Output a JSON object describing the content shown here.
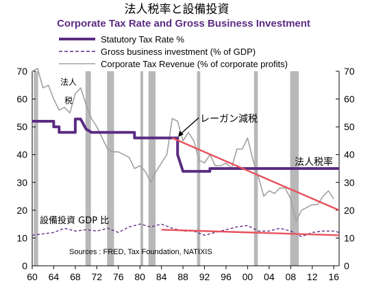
{
  "chart_data": {
    "type": "line",
    "title_jp": "法人税率と設備投資",
    "title": "Corporate Tax Rate and Gross Business Investment",
    "xlim": [
      1960,
      2017
    ],
    "ylim": [
      0,
      70
    ],
    "y_ticks": [
      0,
      10,
      20,
      30,
      40,
      50,
      60,
      70
    ],
    "x_tick_labels": [
      {
        "year": 1960,
        "label": "60"
      },
      {
        "year": 1964,
        "label": "64"
      },
      {
        "year": 1968,
        "label": "68"
      },
      {
        "year": 1972,
        "label": "72"
      },
      {
        "year": 1976,
        "label": "76"
      },
      {
        "year": 1980,
        "label": "80"
      },
      {
        "year": 1984,
        "label": "84"
      },
      {
        "year": 1988,
        "label": "88"
      },
      {
        "year": 1992,
        "label": "92"
      },
      {
        "year": 1996,
        "label": "96"
      },
      {
        "year": 2000,
        "label": "00"
      },
      {
        "year": 2004,
        "label": "04"
      },
      {
        "year": 2008,
        "label": "08"
      },
      {
        "year": 2012,
        "label": "12"
      },
      {
        "year": 2016,
        "label": "16"
      }
    ],
    "recessions": [
      [
        1960.3,
        1961.1
      ],
      [
        1969.9,
        1970.9
      ],
      [
        1973.9,
        1975.2
      ],
      [
        1980.1,
        1980.6
      ],
      [
        1981.6,
        1982.9
      ],
      [
        1990.6,
        1991.2
      ],
      [
        2001.2,
        2001.9
      ],
      [
        2007.9,
        2009.5
      ]
    ],
    "series": [
      {
        "name": "Statutory Tax Rate %",
        "color": "#5b2c83",
        "style": "thick",
        "points": [
          [
            1960,
            52
          ],
          [
            1964,
            52
          ],
          [
            1964,
            50
          ],
          [
            1965,
            50
          ],
          [
            1965,
            48
          ],
          [
            1968,
            48
          ],
          [
            1968,
            52.8
          ],
          [
            1969,
            52.8
          ],
          [
            1970,
            49.2
          ],
          [
            1971,
            48
          ],
          [
            1979,
            48
          ],
          [
            1979,
            46
          ],
          [
            1987,
            46
          ],
          [
            1987,
            40
          ],
          [
            1988,
            34
          ],
          [
            1993,
            34
          ],
          [
            1993,
            35
          ],
          [
            2017,
            35
          ]
        ]
      },
      {
        "name": "Gross business investment (% of GDP)",
        "color": "#5b2c83",
        "style": "dashed",
        "points": [
          [
            1960,
            11
          ],
          [
            1962,
            11.5
          ],
          [
            1964,
            12
          ],
          [
            1966,
            13.5
          ],
          [
            1968,
            12.5
          ],
          [
            1970,
            13
          ],
          [
            1972,
            12.5
          ],
          [
            1974,
            13.5
          ],
          [
            1976,
            12
          ],
          [
            1978,
            14
          ],
          [
            1980,
            15
          ],
          [
            1982,
            14
          ],
          [
            1984,
            15
          ],
          [
            1986,
            13.5
          ],
          [
            1988,
            12.5
          ],
          [
            1990,
            12.5
          ],
          [
            1992,
            11
          ],
          [
            1994,
            12
          ],
          [
            1996,
            13
          ],
          [
            1998,
            14
          ],
          [
            2000,
            14.5
          ],
          [
            2002,
            12.5
          ],
          [
            2004,
            12.5
          ],
          [
            2006,
            13.5
          ],
          [
            2008,
            12.5
          ],
          [
            2010,
            10.5
          ],
          [
            2012,
            12
          ],
          [
            2014,
            12.5
          ],
          [
            2016,
            12.5
          ],
          [
            2017,
            12
          ]
        ]
      },
      {
        "name": "Corporate Tax Revenue (% of corporate profits)",
        "color": "#a0a0a0",
        "style": "solid",
        "points": [
          [
            1960,
            70
          ],
          [
            1961,
            71
          ],
          [
            1962,
            64
          ],
          [
            1963,
            65
          ],
          [
            1964,
            60
          ],
          [
            1965,
            56
          ],
          [
            1966,
            57
          ],
          [
            1967,
            55
          ],
          [
            1968,
            62
          ],
          [
            1969,
            64
          ],
          [
            1970,
            58
          ],
          [
            1971,
            53
          ],
          [
            1972,
            50
          ],
          [
            1973,
            46
          ],
          [
            1974,
            42
          ],
          [
            1975,
            41
          ],
          [
            1976,
            41
          ],
          [
            1977,
            40
          ],
          [
            1978,
            39
          ],
          [
            1979,
            35
          ],
          [
            1980,
            36
          ],
          [
            1981,
            34
          ],
          [
            1982,
            30
          ],
          [
            1983,
            34
          ],
          [
            1984,
            37
          ],
          [
            1985,
            40
          ],
          [
            1986,
            53
          ],
          [
            1987,
            52
          ],
          [
            1988,
            45
          ],
          [
            1989,
            48
          ],
          [
            1990,
            45
          ],
          [
            1991,
            38
          ],
          [
            1992,
            37
          ],
          [
            1993,
            40
          ],
          [
            1994,
            36
          ],
          [
            1995,
            36
          ],
          [
            1996,
            37
          ],
          [
            1997,
            35
          ],
          [
            1998,
            42
          ],
          [
            1999,
            42
          ],
          [
            2000,
            46
          ],
          [
            2001,
            38
          ],
          [
            2002,
            32
          ],
          [
            2003,
            25
          ],
          [
            2004,
            27
          ],
          [
            2005,
            26
          ],
          [
            2006,
            28
          ],
          [
            2007,
            28
          ],
          [
            2008,
            24
          ],
          [
            2009,
            16
          ],
          [
            2010,
            20
          ],
          [
            2011,
            21
          ],
          [
            2012,
            22
          ],
          [
            2013,
            22
          ],
          [
            2014,
            25
          ],
          [
            2015,
            27
          ],
          [
            2016,
            24
          ]
        ]
      }
    ],
    "trend_lines": [
      {
        "color": "#e8505b",
        "points": [
          [
            1986,
            46
          ],
          [
            2017,
            20
          ]
        ]
      },
      {
        "color": "#e8505b",
        "points": [
          [
            1984,
            13
          ],
          [
            2017,
            11
          ]
        ]
      }
    ],
    "annotations": {
      "reagan": "レーガン減税",
      "houjin_zei": "法人\n税",
      "houjin_zeiritsu": "法人税率",
      "setsubi": "設備投資 GDP 比",
      "source": "Sources : FRED, Tax Foundation, NATIXIS"
    }
  }
}
